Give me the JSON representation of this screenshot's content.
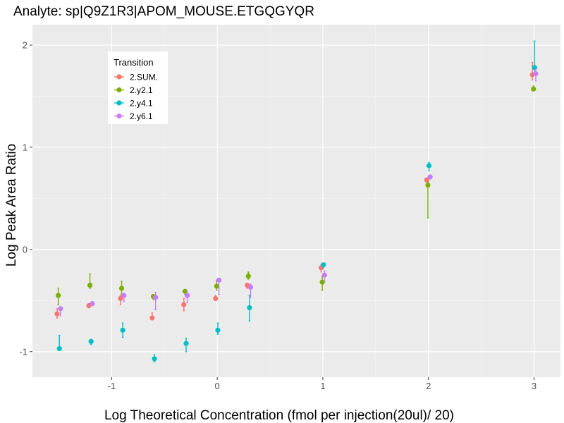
{
  "chart_data": {
    "type": "scatter",
    "title": "Analyte: sp|Q9Z1R3|APOM_MOUSE.ETGQGYQR",
    "xlabel": "Log Theoretical Concentration (fmol per injection(20ul)/ 20)",
    "ylabel": "Log Peak Area Ratio",
    "xlim": [
      -1.75,
      3.25
    ],
    "ylim": [
      -1.25,
      2.2
    ],
    "x_ticks": [
      -1,
      0,
      1,
      2,
      3
    ],
    "x_tick_labels": [
      "-1",
      "0",
      "1",
      "2",
      "3"
    ],
    "y_ticks": [
      -1,
      0,
      1,
      2
    ],
    "y_tick_labels": [
      "-1",
      "0",
      "1",
      "2"
    ],
    "grid": true,
    "background": "#ebebeb",
    "legend": {
      "title": "Transition",
      "position": "top-left-inside"
    },
    "series": [
      {
        "name": "2.SUM.",
        "color": "#f8766d",
        "points": [
          {
            "x": -1.5,
            "y": -0.63,
            "lo": -0.67,
            "hi": -0.58
          },
          {
            "x": -1.2,
            "y": -0.55,
            "lo": -0.57,
            "hi": -0.53
          },
          {
            "x": -0.9,
            "y": -0.48,
            "lo": -0.54,
            "hi": -0.45
          },
          {
            "x": -0.6,
            "y": -0.67,
            "lo": -0.69,
            "hi": -0.62
          },
          {
            "x": -0.3,
            "y": -0.54,
            "lo": -0.6,
            "hi": -0.48
          },
          {
            "x": 0.0,
            "y": -0.48,
            "lo": -0.5,
            "hi": -0.45
          },
          {
            "x": 0.3,
            "y": -0.35,
            "lo": -0.38,
            "hi": -0.33
          },
          {
            "x": 1.0,
            "y": -0.18,
            "lo": -0.22,
            "hi": -0.15
          },
          {
            "x": 2.0,
            "y": 0.68,
            "lo": 0.66,
            "hi": 0.7
          },
          {
            "x": 3.0,
            "y": 1.71,
            "lo": 1.66,
            "hi": 1.83
          }
        ]
      },
      {
        "name": "2.y2.1",
        "color": "#7cae00",
        "points": [
          {
            "x": -1.5,
            "y": -0.45,
            "lo": -0.54,
            "hi": -0.38
          },
          {
            "x": -1.2,
            "y": -0.35,
            "lo": -0.38,
            "hi": -0.24
          },
          {
            "x": -0.9,
            "y": -0.38,
            "lo": -0.44,
            "hi": -0.31
          },
          {
            "x": -0.6,
            "y": -0.46,
            "lo": -0.49,
            "hi": -0.45
          },
          {
            "x": -0.3,
            "y": -0.41,
            "lo": -0.44,
            "hi": -0.4
          },
          {
            "x": 0.0,
            "y": -0.36,
            "lo": -0.4,
            "hi": -0.3
          },
          {
            "x": 0.3,
            "y": -0.26,
            "lo": -0.29,
            "hi": -0.22
          },
          {
            "x": 1.0,
            "y": -0.32,
            "lo": -0.4,
            "hi": -0.26
          },
          {
            "x": 2.0,
            "y": 0.63,
            "lo": 0.31,
            "hi": 0.66
          },
          {
            "x": 3.0,
            "y": 1.57,
            "lo": 1.56,
            "hi": 1.6
          }
        ]
      },
      {
        "name": "2.y4.1",
        "color": "#00bfc4",
        "points": [
          {
            "x": -1.5,
            "y": -0.97,
            "lo": -0.99,
            "hi": -0.84
          },
          {
            "x": -1.2,
            "y": -0.9,
            "lo": -0.93,
            "hi": -0.88
          },
          {
            "x": -0.9,
            "y": -0.79,
            "lo": -0.86,
            "hi": -0.72
          },
          {
            "x": -0.6,
            "y": -1.07,
            "lo": -1.1,
            "hi": -1.03
          },
          {
            "x": -0.3,
            "y": -0.92,
            "lo": -1.0,
            "hi": -0.87
          },
          {
            "x": 0.0,
            "y": -0.79,
            "lo": -0.83,
            "hi": -0.72
          },
          {
            "x": 0.3,
            "y": -0.57,
            "lo": -0.7,
            "hi": -0.45
          },
          {
            "x": 1.0,
            "y": -0.15,
            "lo": -0.18,
            "hi": -0.14
          },
          {
            "x": 2.0,
            "y": 0.82,
            "lo": 0.77,
            "hi": 0.85
          },
          {
            "x": 3.0,
            "y": 1.78,
            "lo": 1.73,
            "hi": 2.04
          }
        ]
      },
      {
        "name": "2.y6.1",
        "color": "#c77cff",
        "points": [
          {
            "x": -1.5,
            "y": -0.58,
            "lo": -0.65,
            "hi": -0.56
          },
          {
            "x": -1.2,
            "y": -0.53,
            "lo": -0.55,
            "hi": -0.52
          },
          {
            "x": -0.9,
            "y": -0.45,
            "lo": -0.51,
            "hi": -0.43
          },
          {
            "x": -0.6,
            "y": -0.47,
            "lo": -0.59,
            "hi": -0.42
          },
          {
            "x": -0.3,
            "y": -0.45,
            "lo": -0.52,
            "hi": -0.41
          },
          {
            "x": 0.0,
            "y": -0.3,
            "lo": -0.44,
            "hi": -0.29
          },
          {
            "x": 0.3,
            "y": -0.37,
            "lo": -0.47,
            "hi": -0.34
          },
          {
            "x": 1.0,
            "y": -0.25,
            "lo": -0.31,
            "hi": -0.21
          },
          {
            "x": 2.0,
            "y": 0.71,
            "lo": 0.69,
            "hi": 0.73
          },
          {
            "x": 3.0,
            "y": 1.72,
            "lo": 1.65,
            "hi": 1.76
          }
        ]
      }
    ]
  }
}
